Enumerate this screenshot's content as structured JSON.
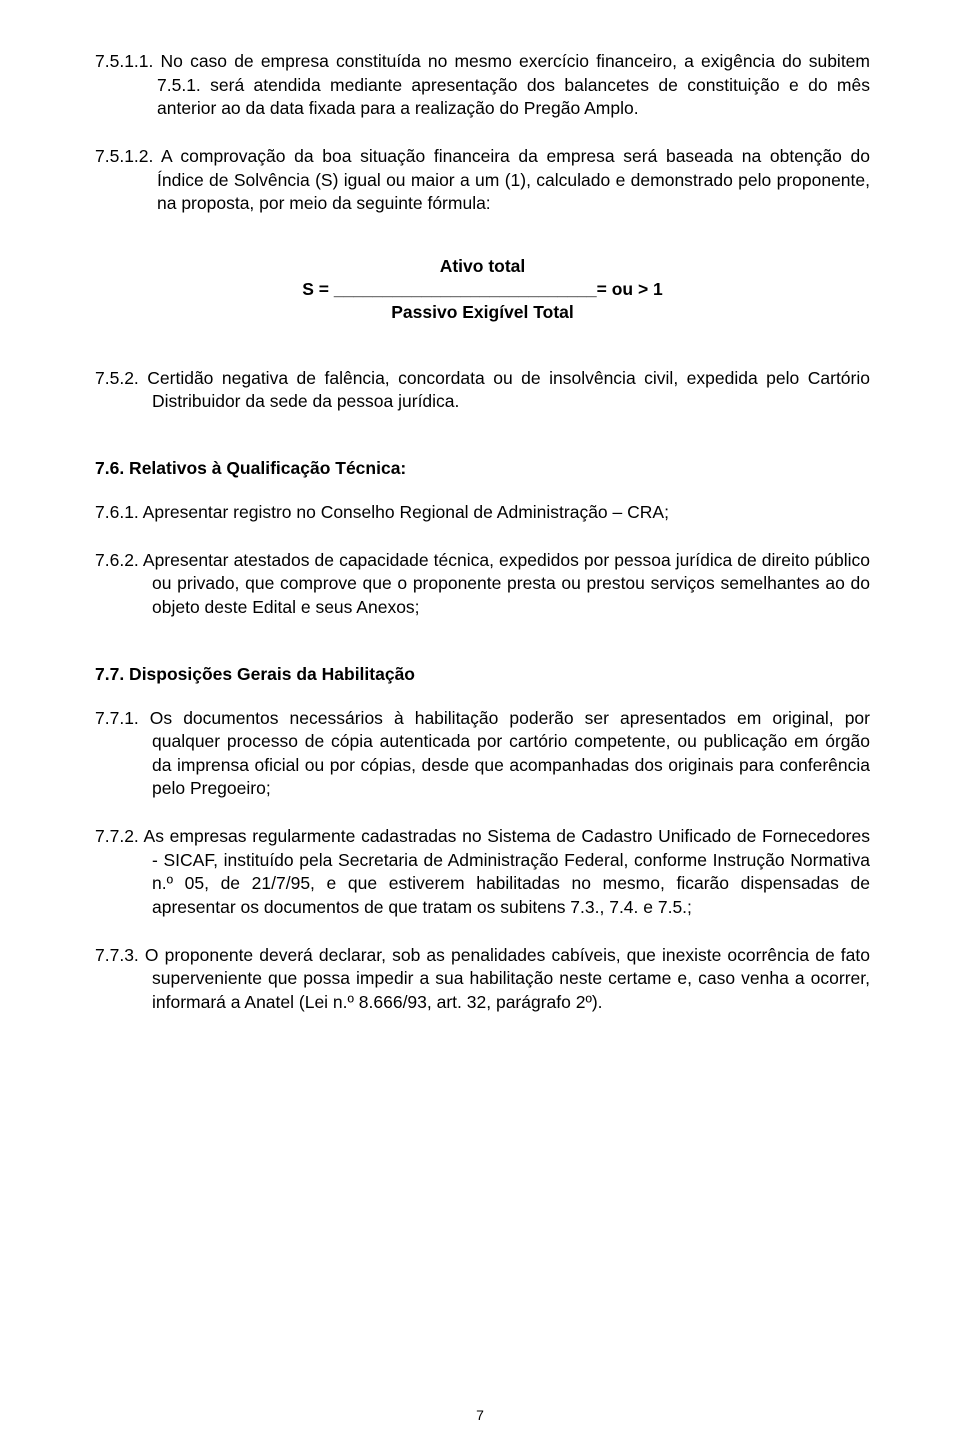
{
  "p1": "7.5.1.1. No caso de empresa constituída no mesmo exercício financeiro, a exigência do subitem 7.5.1. será atendida mediante apresentação dos balancetes de constituição e do mês anterior ao da data fixada para a realização do Pregão Amplo.",
  "p2": "7.5.1.2. A comprovação da boa situação financeira da empresa será baseada na obtenção do Índice de  Solvência (S) igual ou maior a um (1), calculado e demonstrado pelo proponente, na proposta, por meio da seguinte fórmula:",
  "formula": {
    "top": "Ativo total",
    "mid": "S = ___________________________= ou > 1",
    "bottom": "Passivo Exigível Total"
  },
  "p3": "7.5.2. Certidão negativa de falência, concordata ou de insolvência civil, expedida pelo Cartório Distribuidor da sede da pessoa jurídica.",
  "h76": "7.6.    Relativos à Qualificação Técnica:",
  "p4": "7.6.1. Apresentar registro no Conselho Regional de Administração – CRA;",
  "p5": "7.6.2. Apresentar atestados de capacidade técnica, expedidos por pessoa jurídica de direito público ou privado, que comprove que o proponente presta ou prestou serviços semelhantes ao do objeto deste Edital e seus Anexos;",
  "h77": "7.7.     Disposições Gerais da Habilitação",
  "p6": "7.7.1. Os documentos necessários à habilitação poderão ser apresentados em original, por qualquer processo de cópia autenticada por cartório competente, ou publicação em órgão da imprensa oficial ou por cópias, desde que acompanhadas dos originais para conferência pelo Pregoeiro;",
  "p7": "7.7.2. As empresas regularmente cadastradas no Sistema de Cadastro Unificado de Fornecedores - SICAF, instituído pela Secretaria de Administração Federal, conforme Instrução Normativa n.º 05, de 21/7/95, e que estiverem habilitadas no mesmo, ficarão dispensadas de apresentar os documentos de que tratam os subitens 7.3., 7.4. e 7.5.;",
  "p8": "7.7.3. O proponente deverá  declarar,  sob as penalidades cabíveis, que inexiste ocorrência de fato superveniente que possa impedir a sua habilitação neste certame e, caso venha a ocorrer, informará a Anatel (Lei n.º 8.666/93, art. 32, parágrafo 2º).",
  "page_number": "7"
}
